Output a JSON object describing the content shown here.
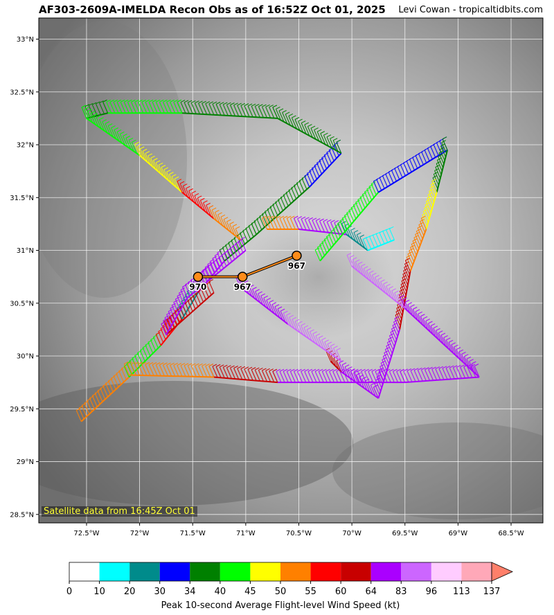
{
  "title": "AF303-2609A-IMELDA Recon Obs as of 16:52Z Oct 01, 2025",
  "credit": "Levi Cowan - tropicaltidbits.com",
  "satellite_note": "Satellite data from 16:45Z Oct 01",
  "map": {
    "lon_range": [
      -72.95,
      -68.2
    ],
    "lat_range": [
      28.42,
      33.2
    ],
    "lon_ticks": [
      {
        "value": -72.5,
        "label": "72.5°W"
      },
      {
        "value": -72.0,
        "label": "72°W"
      },
      {
        "value": -71.5,
        "label": "71.5°W"
      },
      {
        "value": -71.0,
        "label": "71°W"
      },
      {
        "value": -70.5,
        "label": "70.5°W"
      },
      {
        "value": -70.0,
        "label": "70°W"
      },
      {
        "value": -69.5,
        "label": "69.5°W"
      },
      {
        "value": -69.0,
        "label": "69°W"
      },
      {
        "value": -68.5,
        "label": "68.5°W"
      }
    ],
    "lat_ticks": [
      {
        "value": 33.0,
        "label": "33°N"
      },
      {
        "value": 32.5,
        "label": "32.5°N"
      },
      {
        "value": 32.0,
        "label": "32°N"
      },
      {
        "value": 31.5,
        "label": "31.5°N"
      },
      {
        "value": 31.0,
        "label": "31°N"
      },
      {
        "value": 30.5,
        "label": "30.5°N"
      },
      {
        "value": 30.0,
        "label": "30°N"
      },
      {
        "value": 29.5,
        "label": "29.5°N"
      },
      {
        "value": 29.0,
        "label": "29°N"
      },
      {
        "value": 28.5,
        "label": "28.5°N"
      }
    ],
    "grid": true,
    "flight_segments": [
      {
        "from": [
          -72.55,
          29.38
        ],
        "to": [
          -72.1,
          29.8
        ],
        "wind_kt": 52
      },
      {
        "from": [
          -72.1,
          29.8
        ],
        "to": [
          -71.8,
          30.1
        ],
        "wind_kt": 42
      },
      {
        "from": [
          -71.8,
          30.1
        ],
        "to": [
          -71.6,
          30.35
        ],
        "wind_kt": 57
      },
      {
        "from": [
          -71.6,
          30.35
        ],
        "to": [
          -71.45,
          30.6
        ],
        "wind_kt": 25
      },
      {
        "from": [
          -71.45,
          30.6
        ],
        "to": [
          -71.2,
          30.9
        ],
        "wind_kt": 70
      },
      {
        "from": [
          -71.2,
          30.9
        ],
        "to": [
          -70.9,
          31.15
        ],
        "wind_kt": 36
      },
      {
        "from": [
          -70.9,
          31.15
        ],
        "to": [
          -70.4,
          31.6
        ],
        "wind_kt": 38
      },
      {
        "from": [
          -70.4,
          31.6
        ],
        "to": [
          -70.1,
          31.92
        ],
        "wind_kt": 32
      },
      {
        "from": [
          -70.1,
          31.92
        ],
        "to": [
          -70.7,
          32.25
        ],
        "wind_kt": 38
      },
      {
        "from": [
          -70.7,
          32.25
        ],
        "to": [
          -71.6,
          32.3
        ],
        "wind_kt": 36
      },
      {
        "from": [
          -71.6,
          32.3
        ],
        "to": [
          -72.3,
          32.3
        ],
        "wind_kt": 42
      },
      {
        "from": [
          -72.3,
          32.3
        ],
        "to": [
          -72.5,
          32.25
        ],
        "wind_kt": 36
      },
      {
        "from": [
          -72.5,
          32.25
        ],
        "to": [
          -72.0,
          31.9
        ],
        "wind_kt": 40
      },
      {
        "from": [
          -72.0,
          31.9
        ],
        "to": [
          -71.6,
          31.55
        ],
        "wind_kt": 47
      },
      {
        "from": [
          -71.6,
          31.55
        ],
        "to": [
          -71.3,
          31.3
        ],
        "wind_kt": 57
      },
      {
        "from": [
          -71.3,
          31.3
        ],
        "to": [
          -71.05,
          31.1
        ],
        "wind_kt": 52
      },
      {
        "from": [
          -70.8,
          31.2
        ],
        "to": [
          -70.5,
          31.2
        ],
        "wind_kt": 52
      },
      {
        "from": [
          -70.5,
          31.2
        ],
        "to": [
          -70.05,
          31.15
        ],
        "wind_kt": 70
      },
      {
        "from": [
          -70.05,
          31.15
        ],
        "to": [
          -69.85,
          31.0
        ],
        "wind_kt": 25
      },
      {
        "from": [
          -69.85,
          31.0
        ],
        "to": [
          -69.6,
          31.1
        ],
        "wind_kt": 15
      },
      {
        "from": [
          -70.3,
          30.9
        ],
        "to": [
          -69.75,
          31.55
        ],
        "wind_kt": 42
      },
      {
        "from": [
          -69.75,
          31.55
        ],
        "to": [
          -69.1,
          31.95
        ],
        "wind_kt": 32
      },
      {
        "from": [
          -69.1,
          31.95
        ],
        "to": [
          -69.2,
          31.55
        ],
        "wind_kt": 38
      },
      {
        "from": [
          -69.2,
          31.55
        ],
        "to": [
          -69.3,
          31.2
        ],
        "wind_kt": 47
      },
      {
        "from": [
          -69.3,
          31.2
        ],
        "to": [
          -69.45,
          30.8
        ],
        "wind_kt": 52
      },
      {
        "from": [
          -69.45,
          30.8
        ],
        "to": [
          -69.55,
          30.25
        ],
        "wind_kt": 62
      },
      {
        "from": [
          -69.55,
          30.25
        ],
        "to": [
          -69.75,
          29.6
        ],
        "wind_kt": 75
      },
      {
        "from": [
          -69.75,
          29.6
        ],
        "to": [
          -70.1,
          29.85
        ],
        "wind_kt": 75
      },
      {
        "from": [
          -70.1,
          29.85
        ],
        "to": [
          -70.2,
          29.95
        ],
        "wind_kt": 62
      },
      {
        "from": [
          -70.0,
          30.85
        ],
        "to": [
          -69.5,
          30.45
        ],
        "wind_kt": 90
      },
      {
        "from": [
          -69.5,
          30.45
        ],
        "to": [
          -68.8,
          29.8
        ],
        "wind_kt": 75
      },
      {
        "from": [
          -68.8,
          29.8
        ],
        "to": [
          -69.5,
          29.75
        ],
        "wind_kt": 75
      },
      {
        "from": [
          -69.5,
          29.75
        ],
        "to": [
          -70.7,
          29.75
        ],
        "wind_kt": 75
      },
      {
        "from": [
          -70.7,
          29.75
        ],
        "to": [
          -71.3,
          29.8
        ],
        "wind_kt": 62
      },
      {
        "from": [
          -71.3,
          29.8
        ],
        "to": [
          -72.1,
          29.82
        ],
        "wind_kt": 52
      },
      {
        "from": [
          -71.05,
          30.65
        ],
        "to": [
          -70.6,
          30.3
        ],
        "wind_kt": 75
      },
      {
        "from": [
          -70.6,
          30.3
        ],
        "to": [
          -70.1,
          29.95
        ],
        "wind_kt": 90
      },
      {
        "from": [
          -71.3,
          30.6
        ],
        "to": [
          -71.75,
          30.2
        ],
        "wind_kt": 62
      },
      {
        "from": [
          -71.75,
          30.2
        ],
        "to": [
          -71.55,
          30.55
        ],
        "wind_kt": 75
      },
      {
        "from": [
          -71.55,
          30.55
        ],
        "to": [
          -71.0,
          31.0
        ],
        "wind_kt": 75
      }
    ],
    "centers": [
      {
        "lon": -71.45,
        "lat": 30.75,
        "label": "970"
      },
      {
        "lon": -71.03,
        "lat": 30.75,
        "label": "967"
      },
      {
        "lon": -70.52,
        "lat": 30.95,
        "label": "967"
      }
    ]
  },
  "colorbar": {
    "label": "Peak 10-second Average Flight-level Wind Speed (kt)",
    "ticks": [
      "0",
      "10",
      "20",
      "30",
      "34",
      "40",
      "45",
      "50",
      "55",
      "60",
      "64",
      "83",
      "96",
      "113",
      "137"
    ],
    "colors": [
      "#ffffff",
      "#00ffff",
      "#008b8b",
      "#0000ff",
      "#008000",
      "#00ff00",
      "#ffff00",
      "#ff8000",
      "#ff0000",
      "#c80000",
      "#aa00ff",
      "#cc66ff",
      "#ffccff",
      "#ffa8b8"
    ],
    "extend_color": "#ff7f6a"
  }
}
